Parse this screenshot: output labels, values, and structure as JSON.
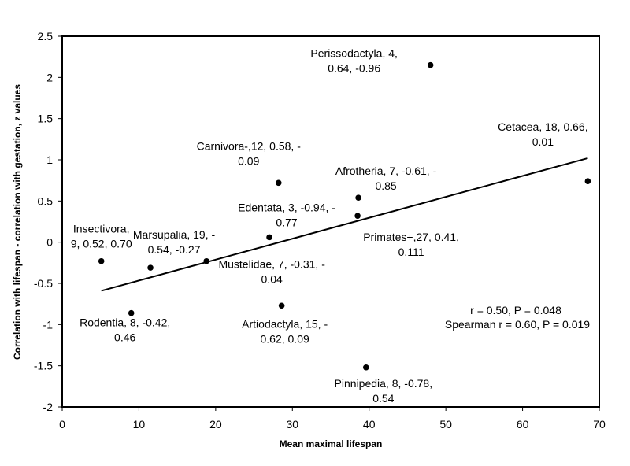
{
  "chart_data": {
    "type": "scatter",
    "title": "",
    "xlabel": "Mean maximal lifespan",
    "ylabel": "Correlation with lifespan - correlation with gestation, z values",
    "xlim": [
      0,
      70
    ],
    "ylim": [
      -2,
      2.5
    ],
    "xticks": [
      0,
      10,
      20,
      30,
      40,
      50,
      60,
      70
    ],
    "yticks": [
      -2,
      -1.5,
      -1,
      -0.5,
      0,
      0.5,
      1,
      1.5,
      2,
      2.5
    ],
    "xtick_labels": [
      "0",
      "10",
      "20",
      "30",
      "40",
      "50",
      "60",
      "70"
    ],
    "ytick_labels": [
      "-2",
      "-1.5",
      "-1",
      "-0.5",
      "0",
      "0.5",
      "1",
      "1.5",
      "2",
      "2.5"
    ],
    "grid": false,
    "legend": "none",
    "points": [
      {
        "name": "Insectivora",
        "x": 5.1,
        "y": -0.23,
        "label_lines": [
          "Insectivora,",
          "9, 0.52, 0.70"
        ]
      },
      {
        "name": "Rodentia",
        "x": 9.0,
        "y": -0.86,
        "label_lines": [
          "Rodentia, 8, -0.42,",
          "0.46"
        ]
      },
      {
        "name": "Marsupalia",
        "x": 11.5,
        "y": -0.31,
        "label_lines": [
          "Marsupalia, 19, -",
          "0.54, -0.27"
        ]
      },
      {
        "name": "Mustelidae",
        "x": 18.8,
        "y": -0.23,
        "label_lines": [
          "Mustelidae, 7, -0.31, -",
          "0.04"
        ]
      },
      {
        "name": "Edentata",
        "x": 27.0,
        "y": 0.06,
        "label_lines": [
          "Edentata, 3, -0.94, -",
          "0.77"
        ]
      },
      {
        "name": "Carnivora",
        "x": 28.2,
        "y": 0.72,
        "label_lines": [
          "Carnivora-,12, 0.58, -",
          "0.09"
        ]
      },
      {
        "name": "Artiodactyla",
        "x": 28.6,
        "y": -0.77,
        "label_lines": [
          "Artiodactyla, 15, -",
          "0.62, 0.09"
        ]
      },
      {
        "name": "Afrotheria",
        "x": 38.6,
        "y": 0.54,
        "label_lines": [
          "Afrotheria, 7, -0.61, -",
          "0.85"
        ]
      },
      {
        "name": "Primates+",
        "x": 38.5,
        "y": 0.32,
        "label_lines": [
          "Primates+,27, 0.41,",
          "0.111"
        ]
      },
      {
        "name": "Pinnipedia",
        "x": 39.6,
        "y": -1.52,
        "label_lines": [
          "Pinnipedia, 8, -0.78,",
          "0.54"
        ]
      },
      {
        "name": "Perissodactyla",
        "x": 48.0,
        "y": 2.15,
        "label_lines": [
          "Perissodactyla, 4,",
          "0.64, -0.96"
        ]
      },
      {
        "name": "Cetacea",
        "x": 68.5,
        "y": 0.74,
        "label_lines": [
          "Cetacea, 18, 0.66,",
          "0.01"
        ]
      }
    ],
    "trendline": {
      "x": [
        5.1,
        68.5
      ],
      "y": [
        -0.59,
        1.02
      ]
    },
    "annotations": [
      "r = 0.50, P = 0.048",
      "Spearman r = 0.60, P = 0.019"
    ],
    "colors": {
      "points": "#000000",
      "line": "#000000",
      "text": "#000000"
    }
  }
}
